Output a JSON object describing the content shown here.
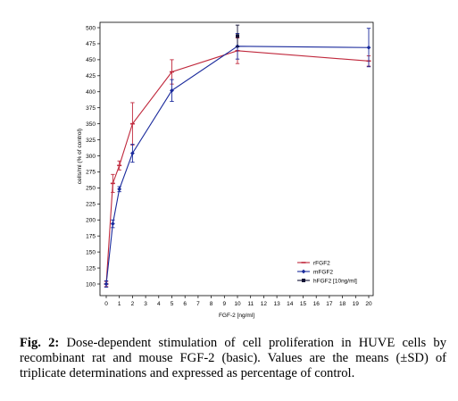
{
  "caption": {
    "label": "Fig. 2:",
    "text": " Dose-dependent stimulation of cell proliferation in HUVE cells by recombinant rat and mouse FGF-2 (basic). Values are the means (±SD) of triplicate determinations and expressed as percentage of control."
  },
  "chart_data": {
    "type": "line",
    "xlabel": "FGF-2 [ng/ml]",
    "ylabel": "cells/ml (% of control)",
    "xlim": [
      0,
      20
    ],
    "ylim": [
      87,
      505
    ],
    "xticks": [
      0,
      1,
      2,
      3,
      4,
      5,
      6,
      7,
      8,
      9,
      10,
      11,
      12,
      13,
      14,
      15,
      16,
      17,
      18,
      19,
      20
    ],
    "yticks": [
      100,
      125,
      150,
      175,
      200,
      225,
      250,
      275,
      300,
      325,
      350,
      375,
      400,
      425,
      450,
      475,
      500
    ],
    "legend_position": "bottom-right",
    "series": [
      {
        "name": "rFGF2",
        "color": "#c0283c",
        "marker": "dash",
        "points": [
          {
            "x": 0,
            "y": 100,
            "err": 4
          },
          {
            "x": 0.5,
            "y": 257,
            "err": 14
          },
          {
            "x": 1,
            "y": 285,
            "err": 7
          },
          {
            "x": 2,
            "y": 350,
            "err": 33
          },
          {
            "x": 5,
            "y": 431,
            "err": 19
          },
          {
            "x": 10,
            "y": 464,
            "err": 20
          },
          {
            "x": 20,
            "y": 448,
            "err": 8
          }
        ]
      },
      {
        "name": "mFGF2",
        "color": "#1a2a9c",
        "marker": "diamond",
        "points": [
          {
            "x": 0,
            "y": 100,
            "err": 5
          },
          {
            "x": 0.5,
            "y": 194,
            "err": 6
          },
          {
            "x": 1,
            "y": 248,
            "err": 4
          },
          {
            "x": 2,
            "y": 304,
            "err": 14
          },
          {
            "x": 5,
            "y": 402,
            "err": 17
          },
          {
            "x": 10,
            "y": 471,
            "err": 20
          },
          {
            "x": 20,
            "y": 469,
            "err": 30
          }
        ]
      },
      {
        "name": "hFGF2 [10ng/ml]",
        "color": "#111133",
        "marker": "square",
        "points": [
          {
            "x": 10,
            "y": 487,
            "err": 17
          }
        ]
      }
    ]
  }
}
